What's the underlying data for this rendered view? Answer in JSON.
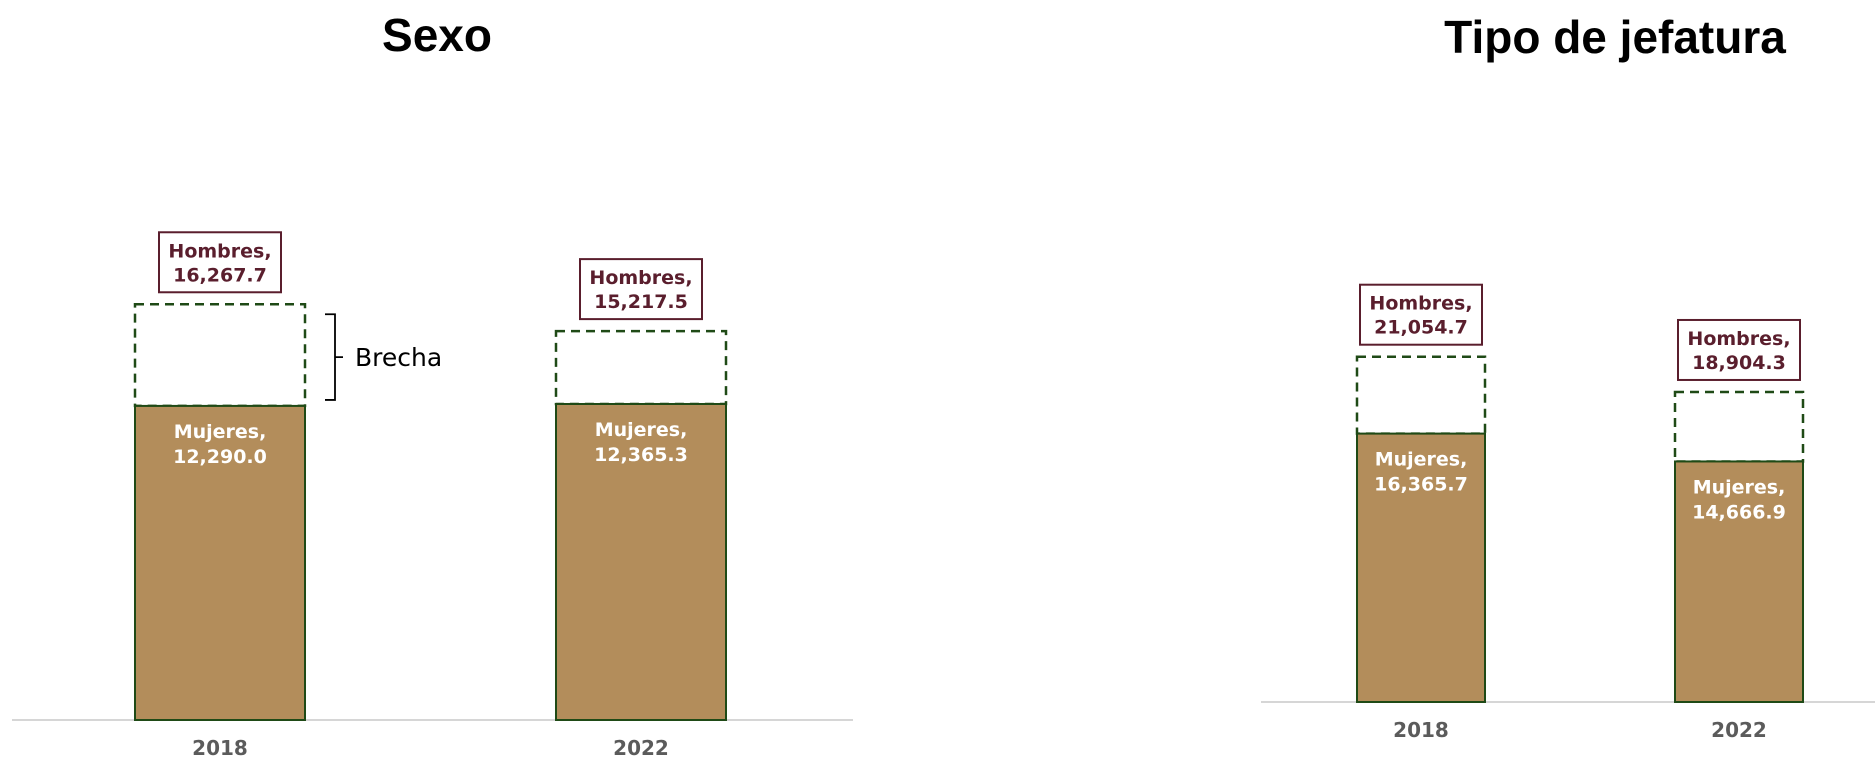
{
  "colors": {
    "mujeres_fill": "#b38d5b",
    "bar_outline": "#1f4a16",
    "hombres_label": "#5a1e2d",
    "axis": "#c8c8c8",
    "tick": "#5b5b5b"
  },
  "chart_data": [
    {
      "type": "bar",
      "title": "Sexo",
      "categories": [
        "2018",
        "2022"
      ],
      "series": [
        {
          "name": "Hombres",
          "values": [
            16267.7,
            15217.5
          ],
          "labels": [
            "Hombres,",
            "Hombres,"
          ],
          "value_labels": [
            "16,267.7",
            "15,217.5"
          ],
          "style": "dashed-outline"
        },
        {
          "name": "Mujeres",
          "values": [
            12290.0,
            12365.3
          ],
          "labels": [
            "Mujeres,",
            "Mujeres,"
          ],
          "value_labels": [
            "12,290.0",
            "12,365.3"
          ],
          "style": "filled"
        }
      ],
      "annotation": "Brecha",
      "ylim": [
        0,
        18000
      ],
      "grid": false,
      "xlabel": "",
      "ylabel": ""
    },
    {
      "type": "bar",
      "title": "Tipo de jefatura",
      "categories": [
        "2018",
        "2022"
      ],
      "series": [
        {
          "name": "Hombres",
          "values": [
            21054.7,
            18904.3
          ],
          "labels": [
            "Hombres,",
            "Hombres,"
          ],
          "value_labels": [
            "21,054.7",
            "18,904.3"
          ],
          "style": "dashed-outline"
        },
        {
          "name": "Mujeres",
          "values": [
            16365.7,
            14666.9
          ],
          "labels": [
            "Mujeres,",
            "Mujeres,"
          ],
          "value_labels": [
            "16,365.7",
            "14,666.9"
          ],
          "style": "filled"
        }
      ],
      "ylim": [
        0,
        25000
      ],
      "grid": false,
      "xlabel": "",
      "ylabel": ""
    }
  ]
}
